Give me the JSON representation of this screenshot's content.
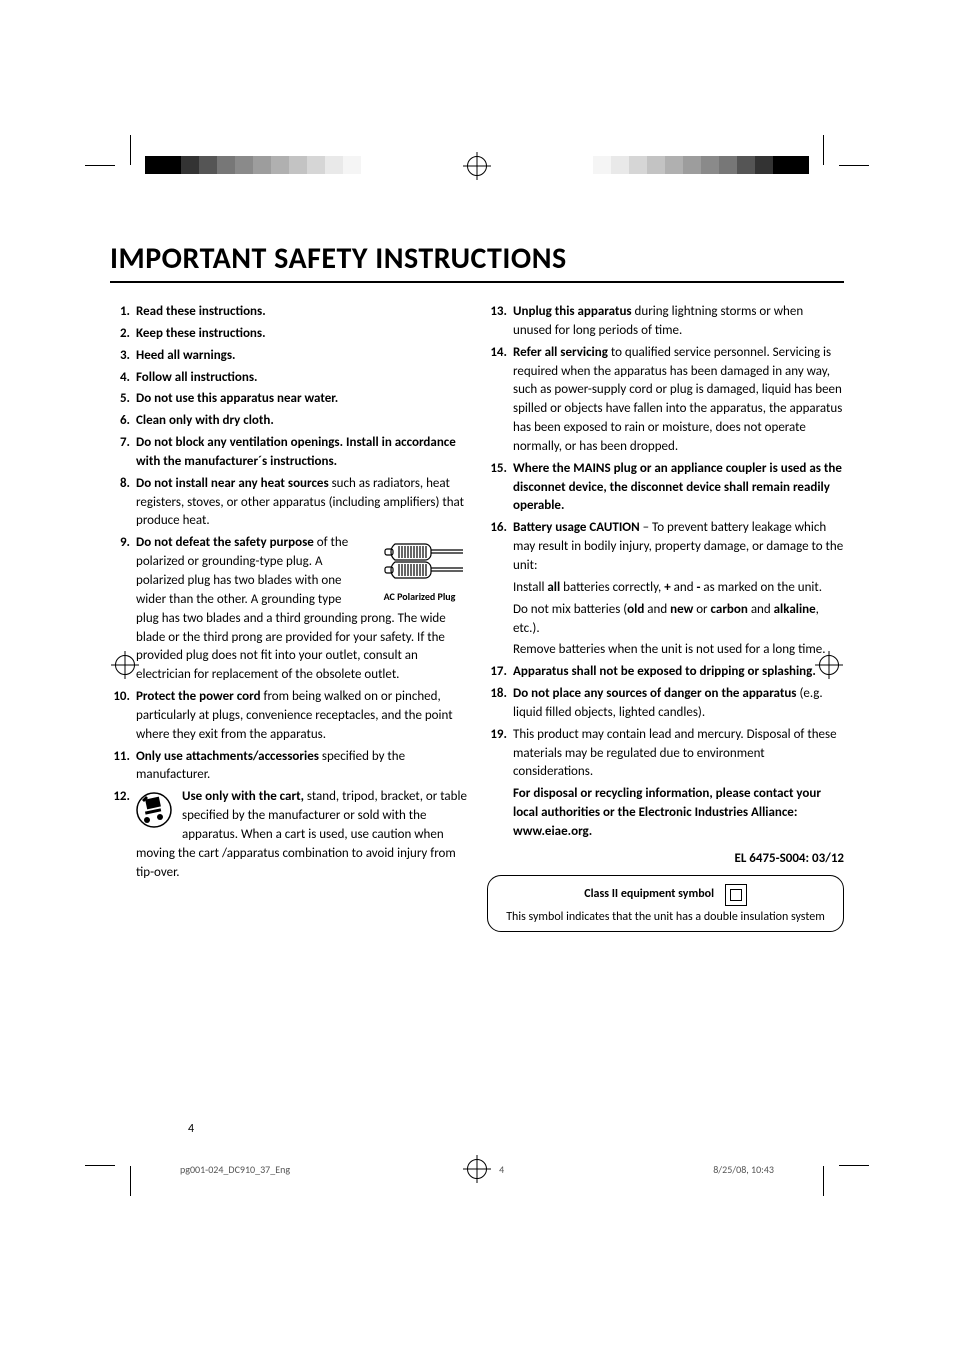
{
  "title": "IMPORTANT SAFETY INSTRUCTIONS",
  "page_number": "4",
  "footer": {
    "file": "pg001-024_DC910_37_Eng",
    "page": "4",
    "date": "8/25/08, 10:43"
  },
  "color_bar": [
    "#000000",
    "#000000",
    "#333333",
    "#555555",
    "#777777",
    "#8a8a8a",
    "#9d9d9d",
    "#b0b0b0",
    "#c3c3c3",
    "#d6d6d6",
    "#e9e9e9",
    "#f5f5f5",
    "#ffffff",
    "#ffffff",
    "#ffffff"
  ],
  "plug_caption": "AC Polarized Plug",
  "el_code": "EL 6475-S004: 03/12",
  "class2": {
    "title": "Class II equipment symbol",
    "sub": "This symbol indicates that the unit has a double insulation system"
  },
  "left": [
    {
      "n": "1.",
      "html": "<b>Read these instructions.</b>"
    },
    {
      "n": "2.",
      "html": "<b>Keep these instructions.</b>"
    },
    {
      "n": "3.",
      "html": "<b>Heed all warnings.</b>"
    },
    {
      "n": "4.",
      "html": "<b>Follow all instructions.</b>"
    },
    {
      "n": "5.",
      "html": "<b>Do not use this apparatus near water.</b>"
    },
    {
      "n": "6.",
      "html": "<b>Clean only with dry cloth.</b>"
    },
    {
      "n": "7.",
      "html": "<b>Do not block any ventilation openings. Install in accordance with the manufacturer´s instructions.</b>"
    },
    {
      "n": "8.",
      "html": "<b>Do not install near any heat sources</b> such as radiators, heat registers, stoves, or other apparatus (including amplifiers) that produce heat."
    },
    {
      "n": "9.",
      "plug": true,
      "html": "<b>Do not defeat the safety purpose</b> of the polarized or grounding-type plug. A polarized plug has two blades with one wider than the other. A grounding type plug has two blades and a third grounding prong. The wide blade or the third prong are provided for your safety. If the provided plug does not fit into your outlet, consult an electrician for replacement of the obsolete outlet."
    },
    {
      "n": "10.",
      "html": "<b>Protect the power cord</b> from being walked on or pinched, particularly at plugs, convenience receptacles, and the point where they exit from the apparatus."
    },
    {
      "n": "11.",
      "html": "<b>Only use attachments/accessories</b> specified by the manufacturer."
    },
    {
      "n": "12.",
      "cart": true,
      "html": "<b>Use only with the cart,</b> stand, tripod, bracket, or table specified by the manufacturer or sold with the apparatus. When a cart is used, use caution when moving the cart /apparatus combination to avoid injury from tip-over."
    }
  ],
  "right": [
    {
      "n": "13.",
      "html": "<b>Unplug this apparatus</b> during lightning storms or when unused for long periods of time."
    },
    {
      "n": "14.",
      "html": "<b>Refer all servicing</b> to qualified service personnel. Servicing is required when the apparatus has been damaged in any way, such as power-supply cord or plug is damaged, liquid has been spilled or objects have fallen into the apparatus, the apparatus has been exposed to rain or moisture, does not operate normally, or has been dropped."
    },
    {
      "n": "15.",
      "html": "<b>Where the MAINS plug or an appliance coupler is used as the disconnet device, the disconnet device shall remain readily operable.</b>"
    },
    {
      "n": "16.",
      "html": "<b>Battery usage CAUTION</b> – To prevent battery leakage which may result in bodily injury, property damage, or damage to the unit:<div class=\"sub\">Install <b>all</b> batteries correctly, <b>+</b> and <b>-</b> as marked on the unit.</div><div class=\"sub\">Do not mix batteries (<b>old</b> and <b>new</b> or <b>carbon</b> and <b>alkaline</b>, etc.).</div><div class=\"sub\">Remove batteries when the unit is not used for a long time.</div>"
    },
    {
      "n": "17.",
      "html": "<b>Apparatus shall not be exposed to dripping or splashing.</b>"
    },
    {
      "n": "18.",
      "html": "<b>Do not place any sources of danger on the apparatus</b> (e.g. liquid filled objects, lighted candles)."
    },
    {
      "n": "19.",
      "html": "This product may contain lead and mercury. Disposal of these materials may be regulated due to environment considerations.<div class=\"sub\"><b>For disposal or recycling information, please contact your local authorities or the Electronic Industries Alliance: www.eiae.org.</b></div>"
    }
  ]
}
